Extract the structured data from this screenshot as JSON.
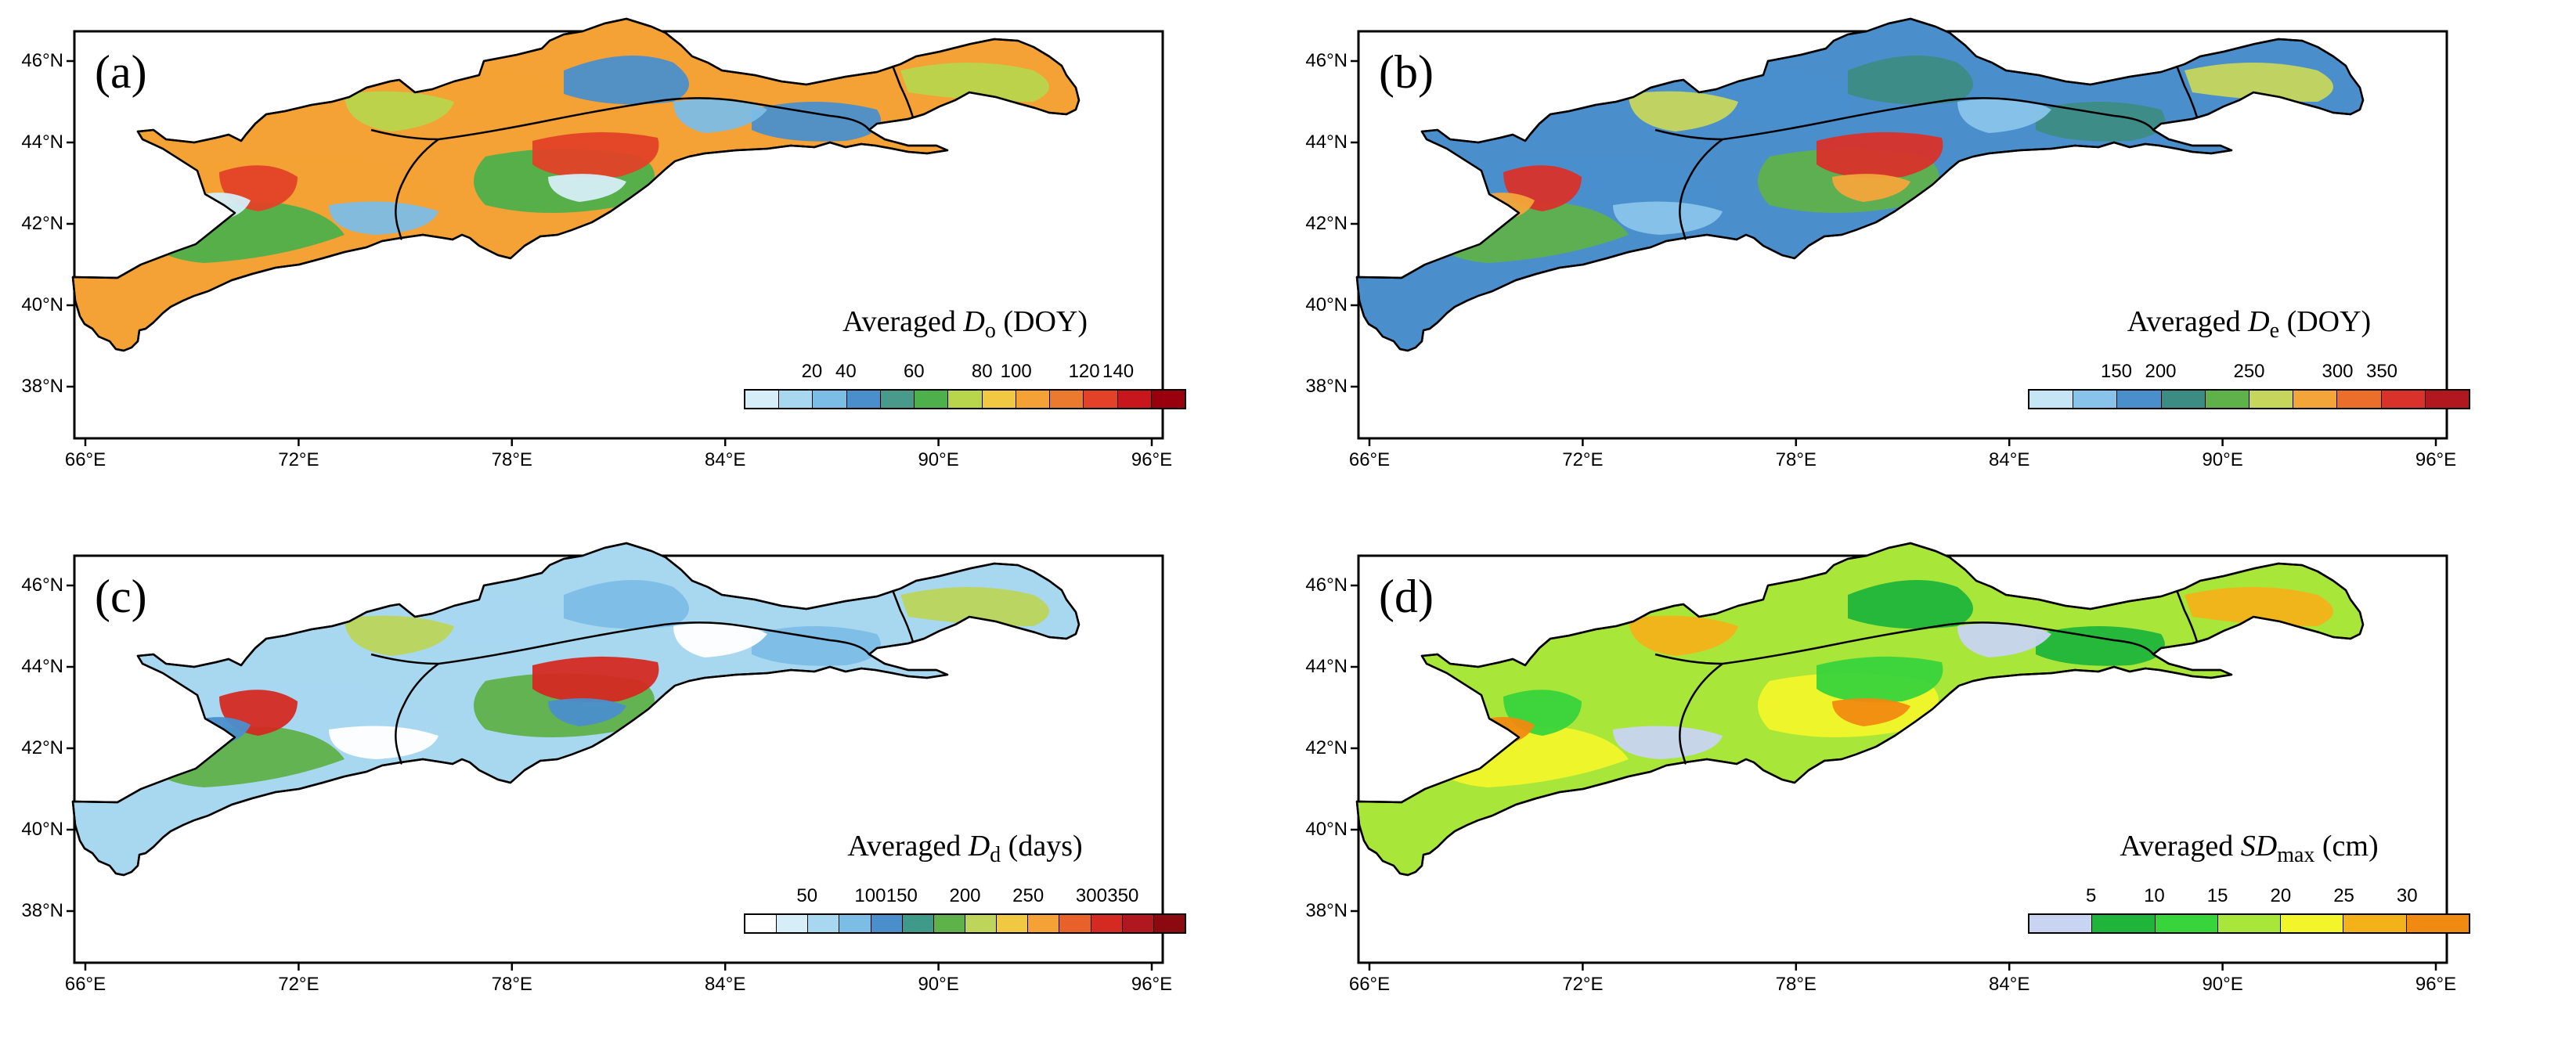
{
  "figure": {
    "x_ticks": [
      "66°E",
      "72°E",
      "78°E",
      "84°E",
      "90°E",
      "96°E"
    ],
    "y_ticks": [
      "46°N",
      "44°N",
      "42°N",
      "40°N",
      "38°N"
    ]
  },
  "panels": [
    {
      "label": "(a)",
      "title_prefix": "Averaged",
      "title_var": "D",
      "title_sub": "o",
      "title_unit": "(DOY)",
      "cb_ticks": [
        "20",
        "40",
        "60",
        "80",
        "100",
        "120",
        "140"
      ],
      "cb_colors": [
        "#d6eef8",
        "#a8d8f0",
        "#7cbde6",
        "#4a8fcc",
        "#4a9a8c",
        "#4db04a",
        "#b8d54c",
        "#f0c842",
        "#f4a235",
        "#ec7a2e",
        "#e34228",
        "#c8161d",
        "#99000d"
      ],
      "field_colors": [
        "#f4a235",
        "#4db04a",
        "#4a8fcc",
        "#b8d54c",
        "#e34228",
        "#7cbde6",
        "#d6eef8"
      ]
    },
    {
      "label": "(b)",
      "title_prefix": "Averaged",
      "title_var": "D",
      "title_sub": "e",
      "title_unit": "(DOY)",
      "cb_ticks": [
        "150",
        "200",
        "250",
        "300",
        "350"
      ],
      "cb_colors": [
        "#c6e6f6",
        "#88c4ea",
        "#4a8fcc",
        "#3d8c84",
        "#5fb14a",
        "#c6d65c",
        "#f4a53a",
        "#eb6f2a",
        "#d8322a",
        "#b0171f"
      ],
      "field_colors": [
        "#4a8fcc",
        "#5fb14a",
        "#3d8c84",
        "#c6d65c",
        "#d8322a",
        "#88c4ea",
        "#f4a53a"
      ]
    },
    {
      "label": "(c)",
      "title_prefix": "Averaged",
      "title_var": "D",
      "title_sub": "d",
      "title_unit": "(days)",
      "cb_ticks": [
        "50",
        "100",
        "150",
        "200",
        "250",
        "300",
        "350"
      ],
      "cb_colors": [
        "#ffffff",
        "#d6eef8",
        "#a8d8f0",
        "#7cbde6",
        "#4a8fcc",
        "#3f9a8a",
        "#5fb14a",
        "#bcd55a",
        "#f0c842",
        "#f4a235",
        "#e8602a",
        "#d42a22",
        "#b0171f",
        "#8a0a10"
      ],
      "field_colors": [
        "#a8d8f0",
        "#5fb14a",
        "#7cbde6",
        "#bcd55a",
        "#d42a22",
        "#ffffff",
        "#4a8fcc"
      ]
    },
    {
      "label": "(d)",
      "title_prefix": "Averaged",
      "title_var": "SD",
      "title_sub": "max",
      "title_unit": "(cm)",
      "cb_ticks": [
        "5",
        "10",
        "15",
        "20",
        "25",
        "30"
      ],
      "cb_colors": [
        "#c8d4f2",
        "#1fb53a",
        "#38d43c",
        "#a8e63a",
        "#f2f52a",
        "#f4b21a",
        "#f08a10"
      ],
      "field_colors": [
        "#a8e63a",
        "#f2f52a",
        "#1fb53a",
        "#f4b21a",
        "#38d43c",
        "#c8d4f2",
        "#f08a10"
      ]
    }
  ]
}
